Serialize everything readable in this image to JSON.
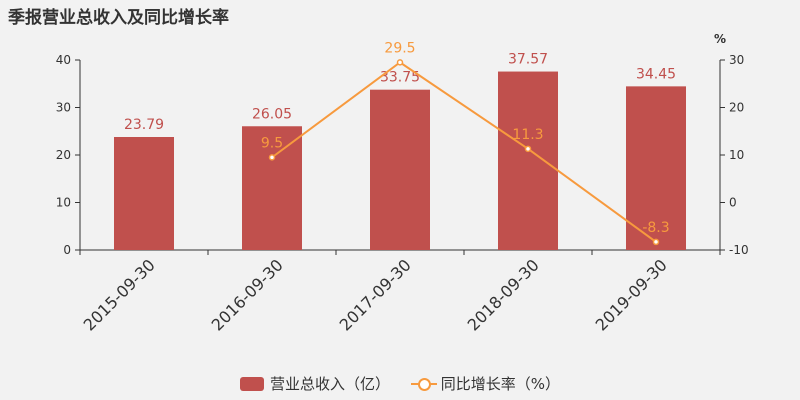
{
  "title": "季报营业总收入及同比增长率",
  "colors": {
    "bar": "#c0504d",
    "line": "#f79a3e",
    "axis": "#333333",
    "text": "#333333"
  },
  "chart_data": {
    "type": "bar",
    "title": "季报营业总收入及同比增长率",
    "categories": [
      "2015-09-30",
      "2016-09-30",
      "2017-09-30",
      "2018-09-30",
      "2019-09-30"
    ],
    "series": [
      {
        "name": "营业总收入（亿）",
        "type": "bar",
        "axis": "left",
        "values": [
          23.79,
          26.05,
          33.75,
          37.57,
          34.45
        ],
        "labels": [
          "23.79",
          "26.05",
          "33.75",
          "37.57",
          "34.45"
        ]
      },
      {
        "name": "同比增长率（%）",
        "type": "line",
        "axis": "right",
        "values": [
          null,
          9.5,
          29.5,
          11.3,
          -8.3
        ],
        "labels": [
          "",
          "9.5",
          "29.5",
          "11.3",
          "-8.3"
        ]
      }
    ],
    "y_left": {
      "min": 0,
      "max": 40,
      "ticks": [
        "0",
        "10",
        "20",
        "30",
        "40"
      ]
    },
    "y_right": {
      "min": -10,
      "max": 30,
      "ticks": [
        "-10",
        "0",
        "10",
        "20",
        "30"
      ],
      "unit": "%"
    },
    "grid": false,
    "legend_position": "bottom"
  }
}
